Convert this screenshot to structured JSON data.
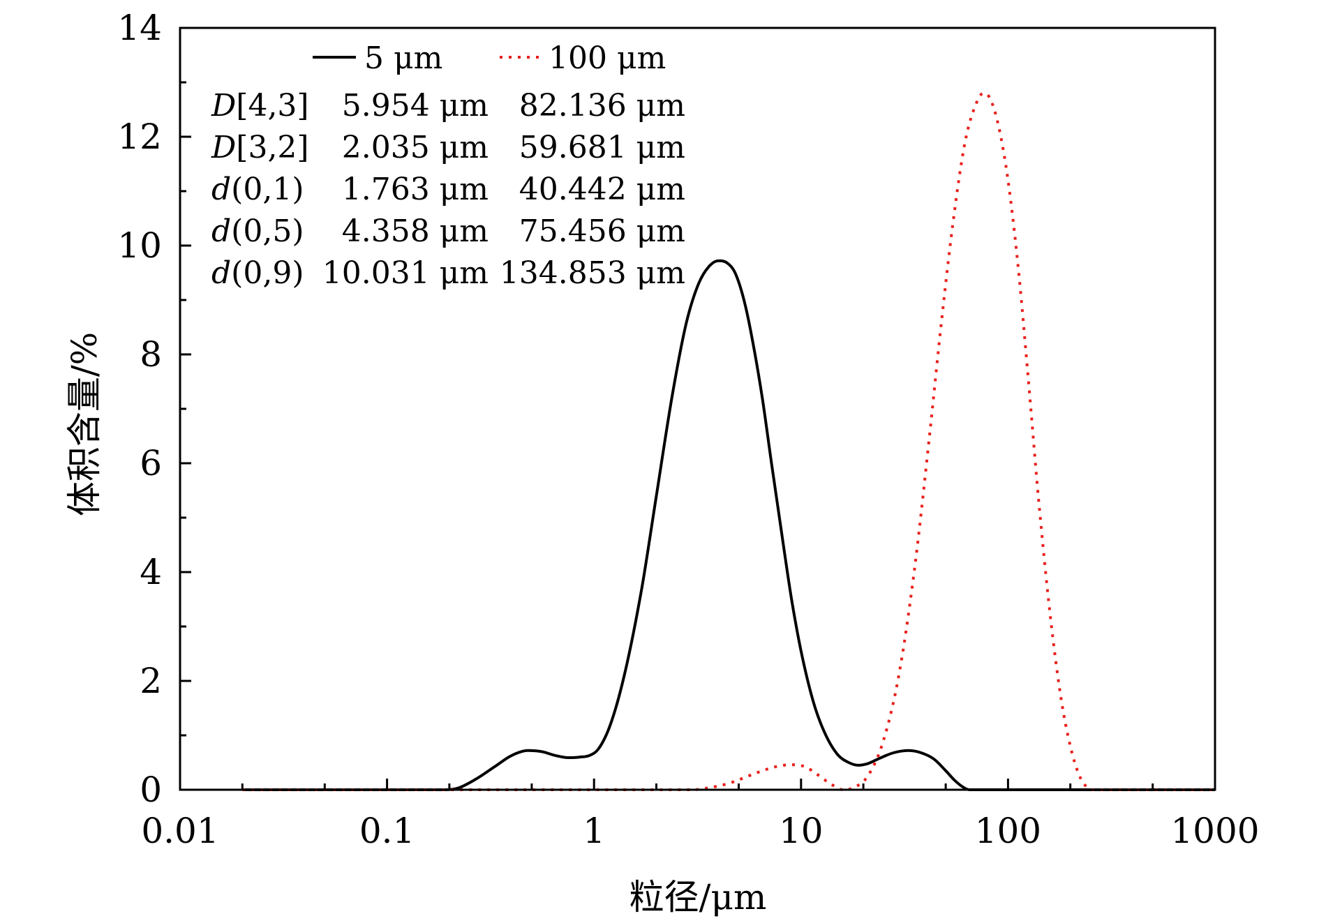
{
  "chart_data": {
    "type": "line",
    "title": "",
    "xlabel": "粒径/μm",
    "ylabel": "体积含量/%",
    "xscale": "log",
    "xlim": [
      0.01,
      1000
    ],
    "ylim": [
      0,
      14
    ],
    "x_ticks": [
      0.01,
      0.1,
      1,
      10,
      100,
      1000
    ],
    "x_tick_labels": [
      "0.01",
      "0.1",
      "1",
      "10",
      "100",
      "1000"
    ],
    "y_ticks": [
      0,
      2,
      4,
      6,
      8,
      10,
      12,
      14
    ],
    "y_tick_labels": [
      "0",
      "2",
      "4",
      "6",
      "8",
      "10",
      "12",
      "14"
    ],
    "legend_position": "top-left",
    "series": [
      {
        "name": "5 μm",
        "color": "#000000",
        "style": "solid",
        "x": [
          0.02,
          0.05,
          0.1,
          0.15,
          0.19,
          0.22,
          0.27,
          0.33,
          0.4,
          0.48,
          0.56,
          0.65,
          0.75,
          0.85,
          0.95,
          1.05,
          1.2,
          1.4,
          1.7,
          2.0,
          2.4,
          2.8,
          3.2,
          3.6,
          4.0,
          4.4,
          4.8,
          5.3,
          5.8,
          6.5,
          7.2,
          8.0,
          9.0,
          10,
          11.5,
          13,
          15,
          17,
          19,
          21,
          24,
          28,
          33,
          38,
          44,
          50,
          55,
          60,
          65,
          100,
          1000
        ],
        "y": [
          0,
          0,
          0,
          0,
          0,
          0.03,
          0.2,
          0.42,
          0.63,
          0.72,
          0.7,
          0.63,
          0.59,
          0.6,
          0.63,
          0.75,
          1.2,
          2.1,
          3.7,
          5.4,
          7.3,
          8.6,
          9.3,
          9.62,
          9.72,
          9.68,
          9.5,
          9.0,
          8.3,
          7.2,
          6.0,
          4.8,
          3.5,
          2.55,
          1.6,
          1.05,
          0.65,
          0.5,
          0.45,
          0.48,
          0.58,
          0.68,
          0.72,
          0.68,
          0.56,
          0.35,
          0.18,
          0.06,
          0,
          0,
          0
        ]
      },
      {
        "name": "100 μm",
        "color": "#e8201c",
        "style": "dotted",
        "x": [
          0.02,
          0.1,
          1,
          2,
          3,
          3.5,
          4.5,
          6,
          7.5,
          9,
          10.5,
          12,
          14,
          16,
          18,
          21,
          25,
          30,
          36,
          42,
          48,
          55,
          62,
          70,
          76,
          82,
          90,
          100,
          112,
          125,
          140,
          160,
          180,
          200,
          220,
          240,
          260,
          300,
          500,
          1000
        ],
        "y": [
          0,
          0,
          0,
          0,
          0,
          0.03,
          0.12,
          0.3,
          0.42,
          0.46,
          0.42,
          0.28,
          0.1,
          0,
          0.04,
          0.25,
          0.9,
          2.2,
          4.3,
          6.6,
          8.7,
          10.6,
          11.9,
          12.6,
          12.8,
          12.7,
          12.2,
          11.2,
          9.6,
          7.6,
          5.4,
          3.2,
          1.7,
          0.8,
          0.28,
          0.05,
          0,
          0,
          0,
          0
        ]
      }
    ],
    "stats": {
      "headers": [
        "",
        "5 μm",
        "100 μm"
      ],
      "rows": [
        {
          "letter": "D",
          "args": "[4,3]",
          "v1": "5.954 μm",
          "v2": "82.136 μm"
        },
        {
          "letter": "D",
          "args": "[3,2]",
          "v1": "2.035 μm",
          "v2": "59.681 μm"
        },
        {
          "letter": "d",
          "args": "(0,1)",
          "v1": "1.763 μm",
          "v2": "40.442 μm"
        },
        {
          "letter": "d",
          "args": "(0,5)",
          "v1": "4.358 μm",
          "v2": "75.456 μm"
        },
        {
          "letter": "d",
          "args": "(0,9)",
          "v1": "10.031 μm",
          "v2": "134.853 μm"
        }
      ]
    }
  }
}
